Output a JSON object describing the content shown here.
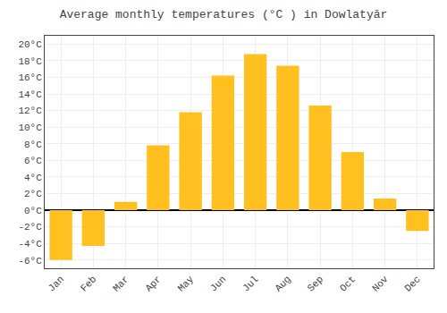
{
  "chart_data": {
    "type": "bar",
    "title": "Average monthly temperatures (°C ) in Dowlatyār",
    "categories": [
      "Jan",
      "Feb",
      "Mar",
      "Apr",
      "May",
      "Jun",
      "Jul",
      "Aug",
      "Sep",
      "Oct",
      "Nov",
      "Dec"
    ],
    "values": [
      -6,
      -4.3,
      1,
      7.8,
      11.8,
      16.2,
      18.8,
      17.4,
      12.6,
      7.0,
      1.4,
      -2.5
    ],
    "color": "#FFC020",
    "ylim": [
      -7,
      21
    ],
    "yticks": [
      {
        "value": -6,
        "label": "-6°C"
      },
      {
        "value": -4,
        "label": "-4°C"
      },
      {
        "value": -2,
        "label": "-2°C"
      },
      {
        "value": 0,
        "label": "0°C"
      },
      {
        "value": 2,
        "label": "2°C"
      },
      {
        "value": 4,
        "label": "4°C"
      },
      {
        "value": 6,
        "label": "6°C"
      },
      {
        "value": 8,
        "label": "8°C"
      },
      {
        "value": 10,
        "label": "10°C"
      },
      {
        "value": 12,
        "label": "12°C"
      },
      {
        "value": 14,
        "label": "14°C"
      },
      {
        "value": 16,
        "label": "16°C"
      },
      {
        "value": 18,
        "label": "18°C"
      },
      {
        "value": 20,
        "label": "20°C"
      }
    ],
    "grid": true
  }
}
